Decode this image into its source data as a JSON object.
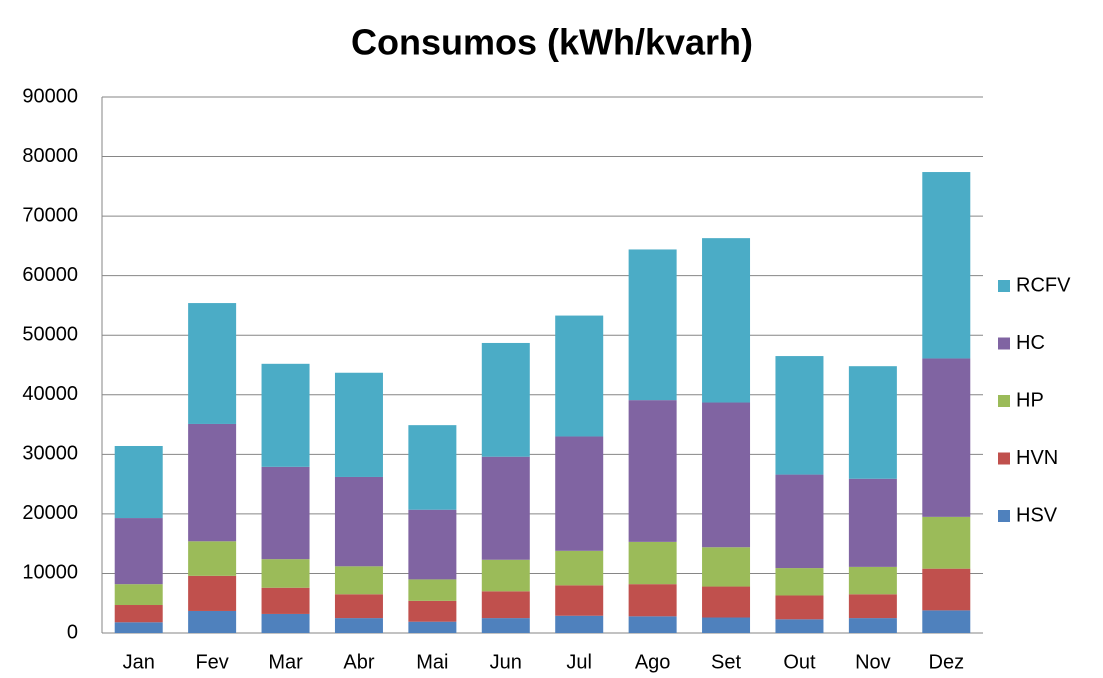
{
  "chart_data": {
    "type": "stacked_bar",
    "title": "Consumos (kWh/kvarh)",
    "categories": [
      "Jan",
      "Fev",
      "Mar",
      "Abr",
      "Mai",
      "Jun",
      "Jul",
      "Ago",
      "Set",
      "Out",
      "Nov",
      "Dez"
    ],
    "series": [
      {
        "name": "HSV",
        "color": "#4f81bd",
        "values": [
          1800,
          3700,
          3200,
          2500,
          1900,
          2500,
          2900,
          2800,
          2600,
          2300,
          2500,
          3800
        ]
      },
      {
        "name": "HVN",
        "color": "#c0504d",
        "values": [
          2900,
          5900,
          4400,
          4000,
          3500,
          4500,
          5100,
          5400,
          5200,
          4000,
          4000,
          7000
        ]
      },
      {
        "name": "HP",
        "color": "#9bbb59",
        "values": [
          3500,
          5800,
          4800,
          4700,
          3600,
          5300,
          5800,
          7100,
          6600,
          4600,
          4600,
          8700
        ]
      },
      {
        "name": "HC",
        "color": "#8064a2",
        "values": [
          11100,
          19700,
          15500,
          15000,
          11700,
          17300,
          19200,
          23800,
          24300,
          15700,
          14800,
          26600
        ]
      },
      {
        "name": "RCFV",
        "color": "#4bacc6",
        "values": [
          12100,
          20300,
          17300,
          17500,
          14200,
          19100,
          20300,
          25300,
          27600,
          19900,
          18900,
          31300
        ]
      }
    ],
    "ylim": [
      0,
      90000
    ],
    "yticks": [
      0,
      10000,
      20000,
      30000,
      40000,
      50000,
      60000,
      70000,
      80000,
      90000
    ],
    "grid": true,
    "legend": "right"
  }
}
